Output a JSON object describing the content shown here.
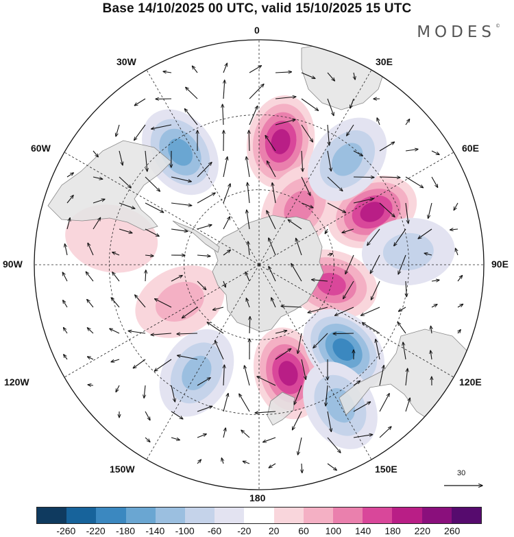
{
  "title": "Base 14/10/2025 00 UTC, valid 15/10/2025 15 UTC",
  "brand": "MODES",
  "brand_mark": "©",
  "longitude_labels": {
    "lon_0": "0",
    "lon_30e": "30E",
    "lon_60e": "60E",
    "lon_90e": "90E",
    "lon_120e": "120E",
    "lon_150e": "150E",
    "lon_180": "180",
    "lon_150w": "150W",
    "lon_120w": "120W",
    "lon_90w": "90W",
    "lon_60w": "60W",
    "lon_30w": "30W"
  },
  "reference_vector": {
    "label": "30"
  },
  "colorbar": {
    "colors": [
      "#0f3a5f",
      "#17639b",
      "#3b88c0",
      "#6aa6d2",
      "#9bbfe0",
      "#c5d3ea",
      "#e3e3f1",
      "#ffffff",
      "#f9d6dc",
      "#f4b0c4",
      "#ea80ad",
      "#d9479a",
      "#b91e86",
      "#8a0f7c",
      "#560b6e"
    ],
    "tick_labels": [
      "-260",
      "-220",
      "-180",
      "-140",
      "-100",
      "-60",
      "-20",
      "20",
      "60",
      "100",
      "140",
      "180",
      "220",
      "260"
    ]
  },
  "anomaly_centers": [
    {
      "name": "positive",
      "lon": 10,
      "lat": -40,
      "value": 220
    },
    {
      "name": "positive",
      "lon": 35,
      "lat": -62,
      "value": 140
    },
    {
      "name": "positive",
      "lon": 65,
      "lat": -40,
      "value": 220
    },
    {
      "name": "positive",
      "lon": 105,
      "lat": -60,
      "value": 180
    },
    {
      "name": "positive",
      "lon": 165,
      "lat": -45,
      "value": 220
    },
    {
      "name": "positive",
      "lon": -115,
      "lat": -55,
      "value": 100
    },
    {
      "name": "positive",
      "lon": -80,
      "lat": -30,
      "value": 60
    },
    {
      "name": "negative",
      "lon": -35,
      "lat": -35,
      "value": -180
    },
    {
      "name": "negative",
      "lon": 40,
      "lat": -35,
      "value": -140
    },
    {
      "name": "negative",
      "lon": 135,
      "lat": -42,
      "value": -220
    },
    {
      "name": "negative",
      "lon": -150,
      "lat": -40,
      "value": -140
    },
    {
      "name": "negative",
      "lon": 150,
      "lat": -25,
      "value": -140
    },
    {
      "name": "negative",
      "lon": 85,
      "lat": -30,
      "value": -100
    }
  ]
}
